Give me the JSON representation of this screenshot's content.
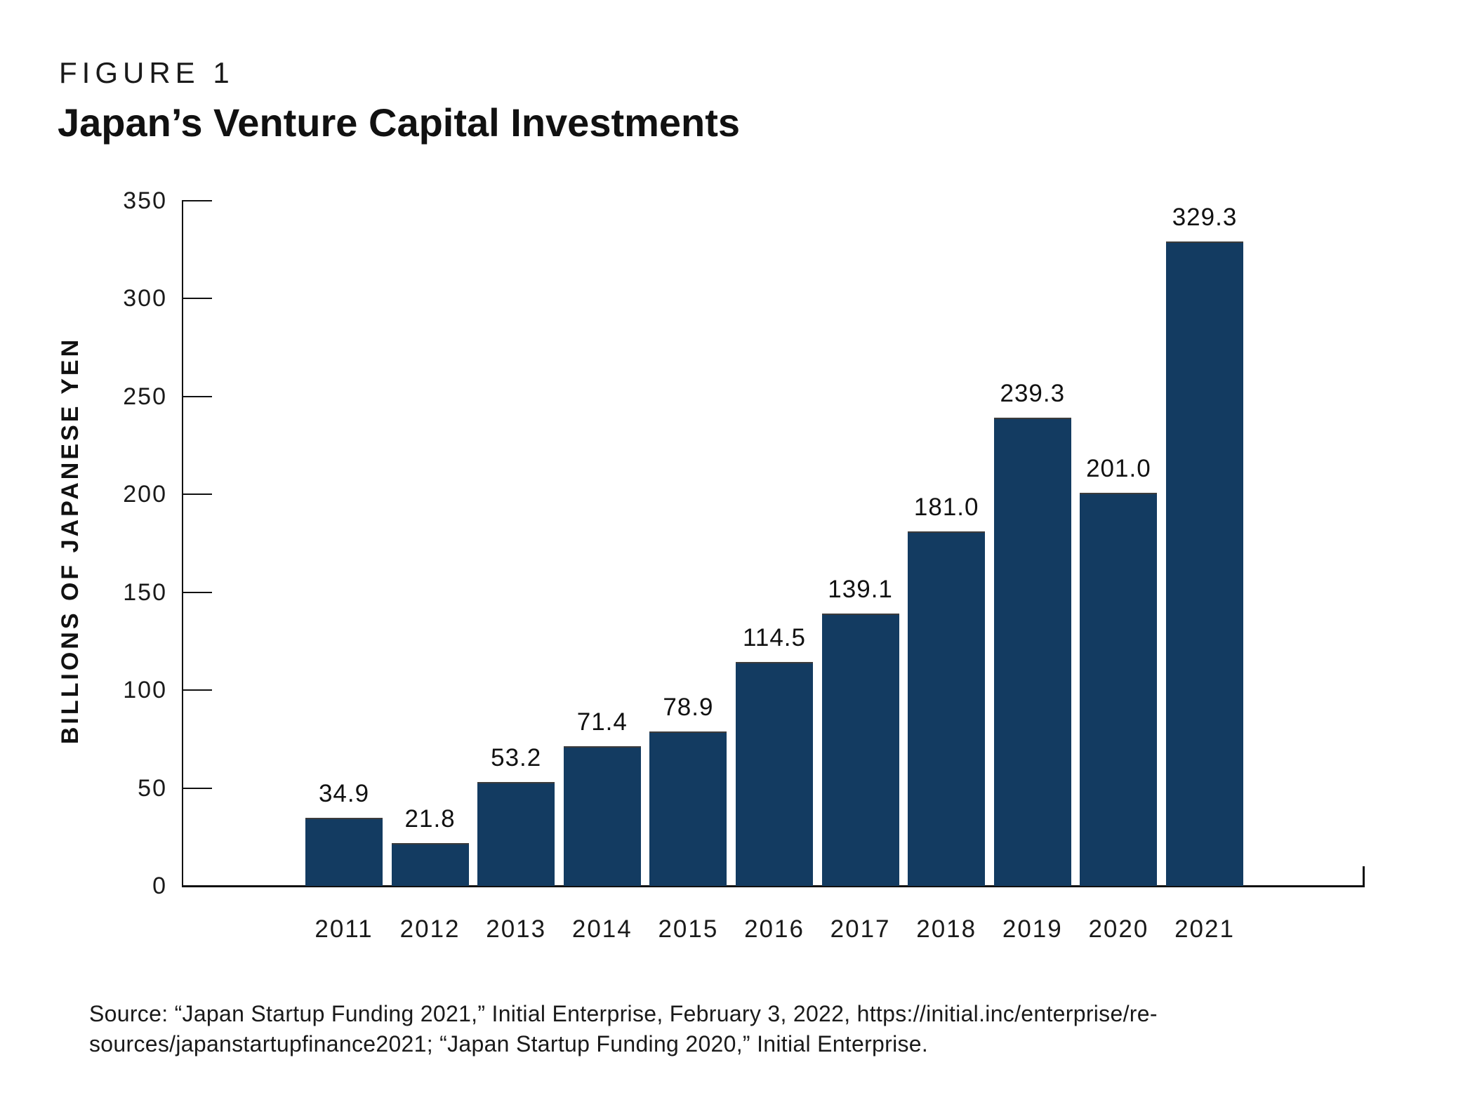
{
  "figure": {
    "kicker": "FIGURE 1",
    "title": "Japan’s Venture Capital Investments"
  },
  "chart_data": {
    "type": "bar",
    "title": "Japan’s Venture Capital Investments",
    "categories": [
      "2011",
      "2012",
      "2013",
      "2014",
      "2015",
      "2016",
      "2017",
      "2018",
      "2019",
      "2020",
      "2021"
    ],
    "values": [
      34.9,
      21.8,
      53.2,
      71.4,
      78.9,
      114.5,
      139.1,
      181.0,
      239.3,
      201.0,
      329.3
    ],
    "value_labels": [
      "34.9",
      "21.8",
      "53.2",
      "71.4",
      "78.9",
      "114.5",
      "139.1",
      "181.0",
      "239.3",
      "201.0",
      "329.3"
    ],
    "xlabel": "",
    "ylabel": "BILLIONS OF JAPANESE YEN",
    "ylim": [
      0,
      350
    ],
    "yticks": [
      0,
      50,
      100,
      150,
      200,
      250,
      300,
      350
    ],
    "grid": false,
    "legend": null,
    "bar_color": "#133B61",
    "axis_color": "#111111",
    "text_color": "#1a1a1a"
  },
  "source": {
    "line1": "Source: “Japan Startup Funding 2021,” Initial Enterprise, February 3, 2022, https://initial.inc/enterprise/re-",
    "line2": "sources/japanstartupfinance2021; “Japan Startup Funding 2020,” Initial Enterprise."
  }
}
